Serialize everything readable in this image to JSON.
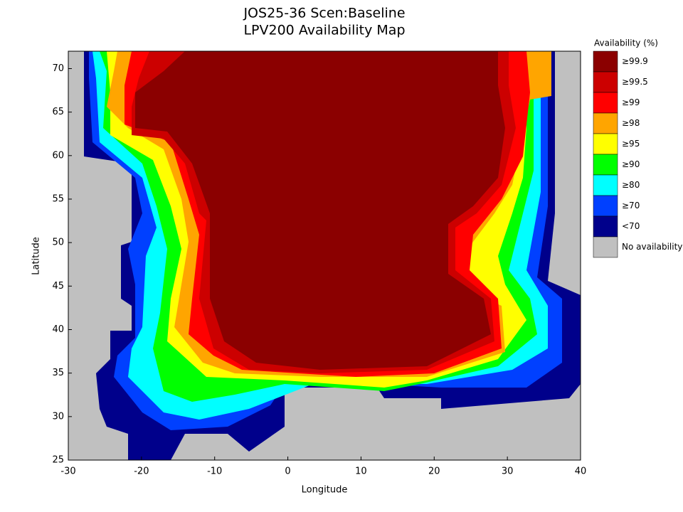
{
  "chart_data": {
    "type": "map",
    "title": "JOS25-36 Scen:Baseline",
    "subtitle": "LPV200 Availability Map",
    "xlabel": "Longitude",
    "ylabel": "Latitude",
    "xlim": [
      -30,
      40
    ],
    "ylim": [
      25,
      72
    ],
    "xticks": [
      -30,
      -20,
      -10,
      0,
      10,
      20,
      30,
      40
    ],
    "yticks": [
      25,
      30,
      35,
      40,
      45,
      50,
      55,
      60,
      65,
      70
    ],
    "legend_title": "Availability (%)",
    "legend": [
      {
        "label": "≥99.9",
        "color": "#8b0000"
      },
      {
        "label": "≥99.5",
        "color": "#cc0000"
      },
      {
        "label": "≥99",
        "color": "#ff0000"
      },
      {
        "label": "≥98",
        "color": "#ffa500"
      },
      {
        "label": "≥95",
        "color": "#ffff00"
      },
      {
        "label": "≥90",
        "color": "#00ff00"
      },
      {
        "label": "≥80",
        "color": "#00ffff"
      },
      {
        "label": "≥70",
        "color": "#0040ff"
      },
      {
        "label": "<70",
        "color": "#00008b"
      },
      {
        "label": "No availability",
        "color": "#c0c0c0"
      }
    ]
  }
}
